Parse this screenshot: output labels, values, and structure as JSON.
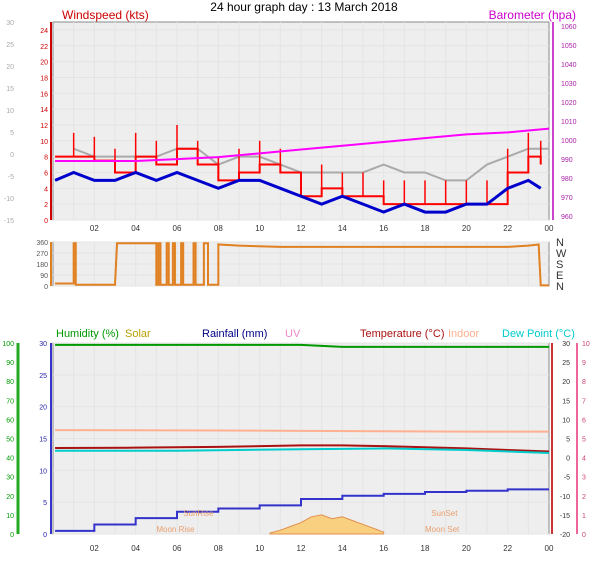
{
  "title": "24 hour graph day : 13 March 2018",
  "x_ticks": [
    "02",
    "04",
    "06",
    "08",
    "10",
    "12",
    "14",
    "16",
    "18",
    "20",
    "22",
    "00"
  ],
  "colors": {
    "wind": "#ff0000",
    "wind_avg": "#0000cc",
    "baro": "#ff00ff",
    "gust": "#aaaaaa",
    "dir": "#e08020",
    "humidity": "#009900",
    "solar": "#b8a000",
    "rain": "#3333cc",
    "uv": "#ee88cc",
    "temp": "#aa1111",
    "indoor": "#ffb090",
    "dew": "#00cccc",
    "solar_fill": "#f8d080",
    "grid": "#e4e4e4",
    "axis_bg": "#eeeeee"
  },
  "chart_data": [
    {
      "type": "line",
      "id": "wind-baro",
      "left_label": "Windspeed (kts)",
      "right_label": "Barometer (hpa)",
      "left_ticks": [
        0,
        2,
        4,
        6,
        8,
        10,
        12,
        14,
        16,
        18,
        20,
        22,
        24
      ],
      "left_outer_ticks": [
        -15,
        -10,
        -5,
        0,
        5,
        10,
        15,
        20,
        25,
        30
      ],
      "right_ticks": [
        960,
        970,
        980,
        990,
        1000,
        1010,
        1020,
        1030,
        1040,
        1050,
        1060
      ],
      "ylim_left": [
        0,
        25
      ],
      "ylim_right": [
        958,
        1062
      ],
      "series": [
        {
          "id": "gust",
          "axis": "left",
          "x": [
            1,
            2,
            3,
            4,
            5,
            6,
            7,
            8,
            9,
            10,
            11,
            12,
            13,
            14,
            15,
            16,
            17,
            18,
            19,
            20,
            21,
            22,
            23,
            24
          ],
          "values": [
            9,
            8,
            8,
            8,
            8,
            9,
            9,
            7,
            8,
            8,
            7,
            6,
            6,
            6,
            6,
            7,
            6,
            6,
            5,
            5,
            7,
            8,
            9,
            9
          ]
        },
        {
          "id": "wind",
          "axis": "left",
          "x": [
            0.1,
            1,
            2,
            3,
            4,
            5,
            6,
            7,
            8,
            9,
            10,
            11,
            12,
            13,
            14,
            15,
            16,
            17,
            18,
            19,
            20,
            21,
            22,
            23,
            23.6
          ],
          "values": [
            8,
            8,
            7.5,
            6,
            8,
            7,
            9,
            7,
            5,
            6,
            7,
            6,
            3,
            4,
            3,
            3,
            2,
            2,
            2,
            2,
            2,
            2,
            6,
            8,
            7
          ]
        },
        {
          "id": "wind_avg",
          "axis": "left",
          "x": [
            0.1,
            1,
            2,
            3,
            4,
            5,
            6,
            7,
            8,
            9,
            10,
            11,
            12,
            13,
            14,
            15,
            16,
            17,
            18,
            19,
            20,
            21,
            22,
            23,
            23.6
          ],
          "values": [
            5,
            6,
            5,
            5,
            6,
            5,
            6,
            5,
            4,
            5,
            5,
            4,
            3,
            2,
            3,
            2,
            1,
            2,
            1,
            1,
            2,
            2,
            4,
            5,
            4
          ]
        },
        {
          "id": "baro",
          "axis": "right",
          "x": [
            0.1,
            4,
            6,
            8,
            10,
            12,
            14,
            16,
            18,
            20,
            22,
            24
          ],
          "values": [
            989,
            989,
            990,
            991,
            993,
            995,
            997,
            999,
            1001,
            1003,
            1004,
            1006
          ]
        }
      ]
    },
    {
      "type": "line",
      "id": "wind-dir",
      "left_ticks": [
        0,
        90,
        180,
        270,
        360
      ],
      "right_labels": [
        "N",
        "W",
        "S",
        "E",
        "N"
      ],
      "ylim": [
        0,
        360
      ],
      "series": [
        {
          "id": "dir",
          "x": [
            0.1,
            1.0,
            1.0,
            1.1,
            1.1,
            3.0,
            3.1,
            5.0,
            5.0,
            5.1,
            5.1,
            5.2,
            5.2,
            5.5,
            5.5,
            5.6,
            5.6,
            5.8,
            5.8,
            5.9,
            5.9,
            6.2,
            6.2,
            6.3,
            6.3,
            6.8,
            6.8,
            6.9,
            6.9,
            7.3,
            7.3,
            7.5,
            7.5,
            8.0,
            8.0,
            9.0,
            11.0,
            15.0,
            19.0,
            22.0,
            23.0,
            23.5,
            23.6,
            23.7,
            24.0
          ],
          "values": [
            20,
            20,
            350,
            350,
            10,
            10,
            350,
            350,
            10,
            10,
            350,
            350,
            10,
            10,
            350,
            350,
            10,
            10,
            350,
            350,
            10,
            10,
            350,
            350,
            10,
            10,
            350,
            350,
            10,
            10,
            350,
            350,
            10,
            10,
            340,
            330,
            320,
            320,
            320,
            320,
            330,
            340,
            5,
            5,
            5
          ]
        }
      ]
    },
    {
      "type": "line",
      "id": "weather",
      "labels": {
        "humidity": "Humidity (%)",
        "solar": "Solar",
        "rain": "Rainfall (mm)",
        "uv": "UV",
        "temp": "Temperature (°C)",
        "indoor": "Indoor",
        "dew": "Dew Point (°C)"
      },
      "left_ticks": [
        0,
        10,
        20,
        30,
        40,
        50,
        60,
        70,
        80,
        90,
        100
      ],
      "mid_ticks": [
        0,
        5,
        10,
        15,
        20,
        25,
        30
      ],
      "right_ticks": [
        -20,
        -15,
        -10,
        -5,
        0,
        5,
        10,
        15,
        20,
        25,
        30
      ],
      "right2_ticks": [
        0,
        1,
        2,
        3,
        4,
        5,
        6,
        7,
        8,
        9,
        10
      ],
      "ylim_left": [
        0,
        100
      ],
      "ylim_temp": [
        -20,
        30
      ],
      "annotations": [
        {
          "text": "SunRise",
          "x": 6.3
        },
        {
          "text": "Moon Rise",
          "x": 5.0
        },
        {
          "text": "SunSet",
          "x": 18.3
        },
        {
          "text": "Moon Set",
          "x": 18.0
        }
      ],
      "series": [
        {
          "id": "humidity",
          "axis": "left",
          "x": [
            0.1,
            8,
            12,
            14,
            16,
            20,
            22,
            24
          ],
          "values": [
            99,
            99,
            99,
            98,
            98,
            98,
            98,
            98
          ]
        },
        {
          "id": "temp",
          "axis": "temp",
          "x": [
            0.1,
            4,
            8,
            12,
            14,
            16,
            20,
            22,
            24
          ],
          "values": [
            2.5,
            2.6,
            2.8,
            3.2,
            3.2,
            3.0,
            2.4,
            2.0,
            1.6
          ]
        },
        {
          "id": "indoor",
          "axis": "temp",
          "x": [
            0.1,
            8,
            12,
            16,
            20,
            24
          ],
          "values": [
            7.2,
            7.1,
            7.0,
            6.9,
            6.8,
            6.8
          ]
        },
        {
          "id": "dew",
          "axis": "temp",
          "x": [
            0.1,
            6,
            12,
            16,
            20,
            24
          ],
          "values": [
            1.8,
            1.8,
            2.2,
            2.4,
            2.0,
            1.2
          ]
        },
        {
          "id": "rain",
          "axis": "mid",
          "x": [
            0.1,
            2,
            4,
            6,
            8,
            10,
            12,
            14,
            16,
            18,
            20,
            22,
            24
          ],
          "values": [
            0.5,
            1.5,
            2.5,
            3.5,
            4.0,
            4.5,
            5.5,
            6.0,
            6.3,
            6.6,
            6.8,
            7.0,
            7.0
          ]
        },
        {
          "id": "solar",
          "axis": "left",
          "x": [
            10.5,
            11,
            11.5,
            12,
            12.5,
            13,
            13.5,
            14,
            14.5,
            15,
            15.5,
            16
          ],
          "values": [
            0.5,
            2,
            4,
            6,
            9,
            10,
            8,
            9,
            7,
            5,
            3,
            1
          ]
        }
      ]
    }
  ]
}
